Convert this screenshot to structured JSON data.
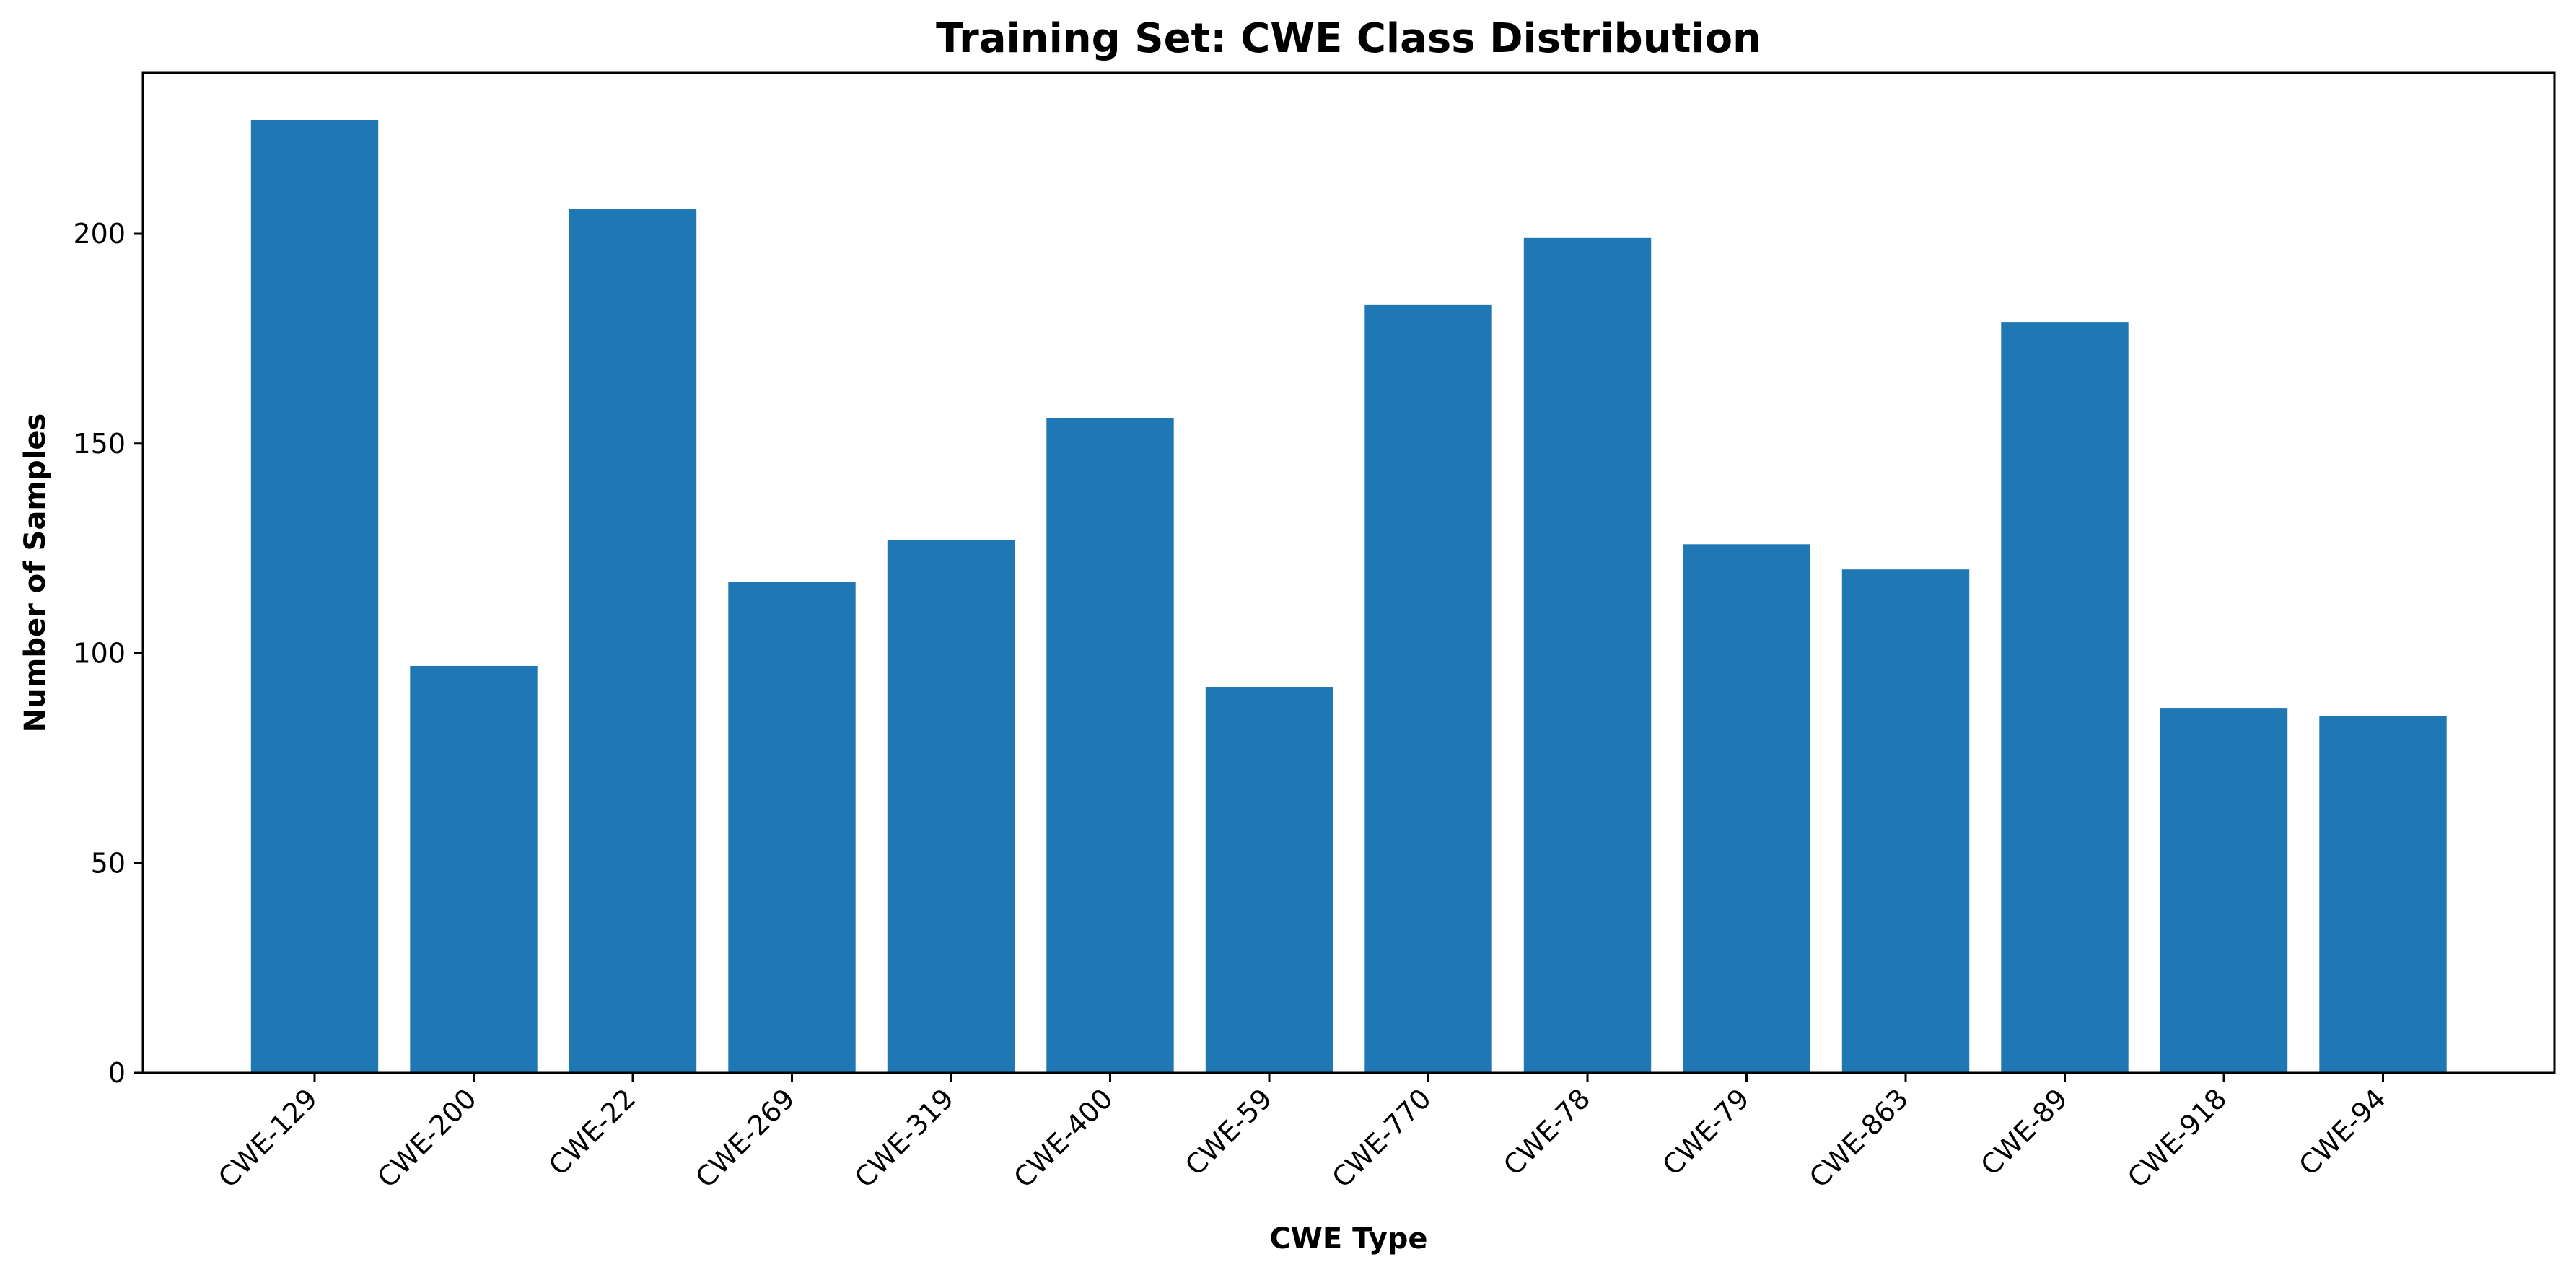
{
  "chart_data": {
    "type": "bar",
    "title": "Training Set: CWE Class Distribution",
    "xlabel": "CWE Type",
    "ylabel": "Number of Samples",
    "categories": [
      "CWE-129",
      "CWE-200",
      "CWE-22",
      "CWE-269",
      "CWE-319",
      "CWE-400",
      "CWE-59",
      "CWE-770",
      "CWE-78",
      "CWE-79",
      "CWE-863",
      "CWE-89",
      "CWE-918",
      "CWE-94"
    ],
    "values": [
      227,
      97,
      206,
      117,
      127,
      156,
      92,
      183,
      199,
      126,
      120,
      179,
      87,
      85
    ],
    "ylim": [
      0,
      238.35
    ],
    "yticks": [
      0,
      50,
      100,
      150,
      200
    ],
    "grid": false,
    "bar_color": "#1f77b4"
  }
}
